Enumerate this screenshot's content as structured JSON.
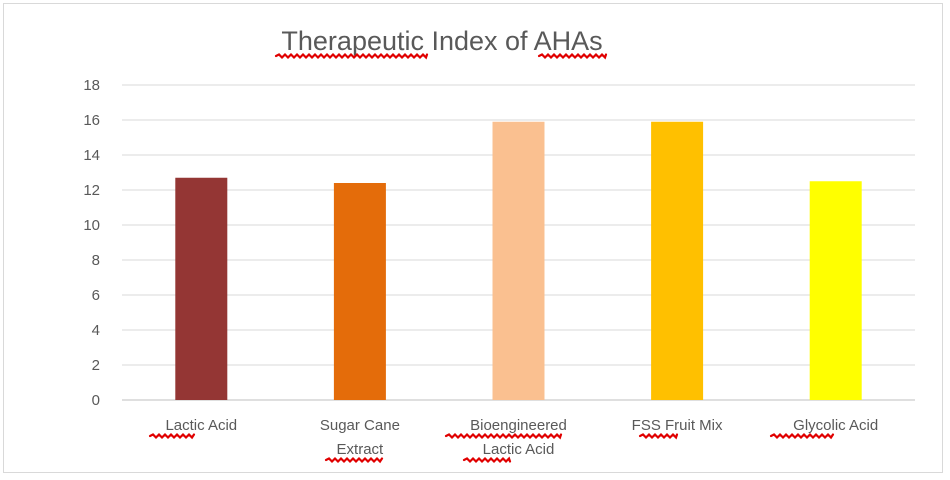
{
  "chart_data": {
    "type": "bar",
    "title": "Therapeutic Index of AHAs",
    "categories": [
      [
        "Lactic Acid"
      ],
      [
        "Sugar Cane",
        "Extract"
      ],
      [
        "Bioengineered",
        "Lactic Acid"
      ],
      [
        "FSS Fruit Mix"
      ],
      [
        "Glycolic Acid"
      ]
    ],
    "values": [
      12.7,
      12.4,
      15.9,
      15.9,
      12.5
    ],
    "colors": [
      "#943634",
      "#e46c0a",
      "#fac090",
      "#ffc000",
      "#ffff00"
    ],
    "ylim": [
      0,
      18
    ],
    "yticks": [
      0,
      2,
      4,
      6,
      8,
      10,
      12,
      14,
      16,
      18
    ],
    "xlabel": "",
    "ylabel": "",
    "grid": true,
    "legend": "none"
  }
}
